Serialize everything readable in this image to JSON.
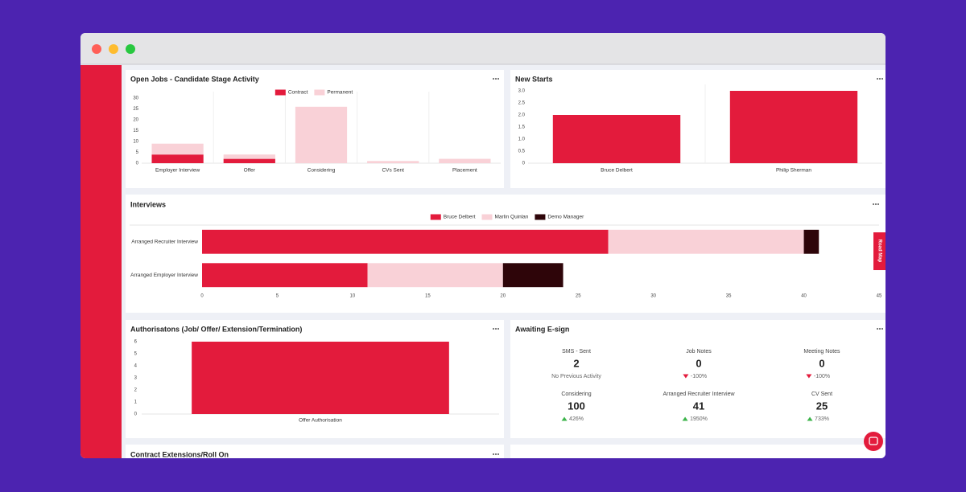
{
  "chart_data": [
    {
      "type": "bar",
      "title": "Open Jobs - Candidate Stage Activity",
      "categories": [
        "Employer Interview",
        "Offer",
        "Considering",
        "CVs Sent",
        "Placement"
      ],
      "series": [
        {
          "name": "Contract",
          "color": "#e31b3c",
          "values": [
            4,
            2,
            0,
            0,
            0
          ]
        },
        {
          "name": "Permanent",
          "color": "#f9d1d7",
          "values": [
            5,
            2,
            26,
            1,
            2
          ]
        }
      ],
      "ylim": [
        0,
        30
      ],
      "yticks": [
        0,
        5,
        10,
        15,
        20,
        25,
        30
      ],
      "stacked": true,
      "legend": "top"
    },
    {
      "type": "bar",
      "title": "New Starts",
      "categories": [
        "Bruce Delbert",
        "Philip Sherman"
      ],
      "values": [
        2,
        3
      ],
      "color": "#e31b3c",
      "ylim": [
        0,
        3
      ],
      "yticks": [
        0,
        0.5,
        {
          "value": 1,
          "label": "1.0"
        },
        1.5,
        {
          "value": 2,
          "label": "2.0"
        },
        2.5,
        {
          "value": 3,
          "label": "3.0"
        }
      ]
    },
    {
      "type": "barh",
      "title": "Interviews",
      "categories": [
        "Arranged Recruiter Interview",
        "Arranged Employer Interview"
      ],
      "series": [
        {
          "name": "Bruce Delbert",
          "color": "#e31b3c",
          "values": [
            27,
            11
          ]
        },
        {
          "name": "Marlin Quinlan",
          "color": "#f9d1d7",
          "values": [
            13,
            9
          ]
        },
        {
          "name": "Demo Manager",
          "color": "#2e0509",
          "values": [
            1,
            4
          ]
        }
      ],
      "xlim": [
        0,
        45
      ],
      "xticks": [
        0,
        5,
        10,
        15,
        20,
        25,
        30,
        35,
        40,
        45
      ],
      "stacked": true,
      "legend": "top"
    },
    {
      "type": "bar",
      "title": "Authorisatons (Job/ Offer/ Extension/Termination)",
      "categories": [
        "Offer Authorisation"
      ],
      "values": [
        6
      ],
      "color": "#e31b3c",
      "ylim": [
        0,
        6
      ],
      "yticks": [
        0,
        1,
        2,
        3,
        4,
        5,
        6
      ]
    }
  ],
  "kpi_panel": {
    "title": "Awaiting E-sign",
    "items": [
      {
        "label": "SMS - Sent",
        "value": 2,
        "change": "No Previous Activity"
      },
      {
        "label": "Job Notes",
        "value": 0,
        "change": "-100%",
        "trend": "down"
      },
      {
        "label": "Meeting Notes",
        "value": 0,
        "change": "-100%",
        "trend": "down"
      },
      {
        "label": "Considering",
        "value": 100,
        "change": "426%",
        "trend": "up"
      },
      {
        "label": "Arranged Recruiter Interview",
        "value": 41,
        "change": "1950%",
        "trend": "up"
      },
      {
        "label": "CV Sent",
        "value": 25,
        "change": "733%",
        "trend": "up"
      }
    ]
  },
  "contract_panel": {
    "title": "Contract Extensions/Roll On"
  },
  "road_map": "Road Map"
}
